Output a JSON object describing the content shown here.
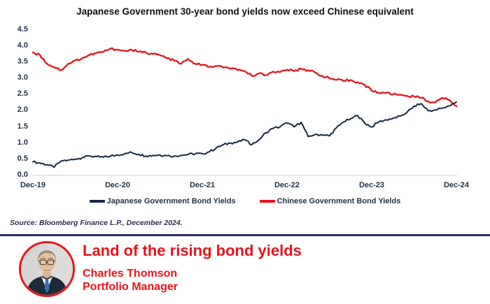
{
  "colors": {
    "red": "#e8141d",
    "navy": "#16293f",
    "divider": "#2c3065",
    "source_text": "#372a52",
    "axis_text": "#1f3044",
    "legend_text": "#253243",
    "grid": "#cccccc"
  },
  "chart_data": {
    "type": "line",
    "title": "Japanese Government 30-year bond yields now exceed Chinese equivalent",
    "xlabel": "",
    "ylabel": "",
    "ylim": [
      0,
      4.5
    ],
    "grid": "baseline-only",
    "legend_position": "bottom",
    "x_unit": "monthly observations, Dec-2019 to Dec-2024",
    "x_tick_labels": [
      "Dec-19",
      "Dec-20",
      "Dec-21",
      "Dec-22",
      "Dec-23",
      "Dec-24"
    ],
    "x_tick_months": [
      0,
      12,
      24,
      36,
      48,
      60
    ],
    "y_ticks": [
      0,
      0.5,
      1,
      1.5,
      2,
      2.5,
      3,
      3.5,
      4,
      4.5
    ],
    "y_tick_labels": [
      "0.0",
      "0.5",
      "1.0",
      "1.5",
      "2.0",
      "2.5",
      "3.0",
      "3.5",
      "4.0",
      "4.5"
    ],
    "series": [
      {
        "name": "Japanese Government Bond Yields",
        "color": "#16293f",
        "values": [
          0.42,
          0.38,
          0.33,
          0.25,
          0.45,
          0.47,
          0.5,
          0.55,
          0.6,
          0.58,
          0.56,
          0.6,
          0.63,
          0.67,
          0.71,
          0.65,
          0.6,
          0.62,
          0.63,
          0.61,
          0.6,
          0.62,
          0.65,
          0.67,
          0.67,
          0.73,
          0.85,
          0.95,
          1.0,
          1.03,
          1.1,
          0.95,
          1.1,
          1.32,
          1.45,
          1.5,
          1.62,
          1.5,
          1.64,
          1.2,
          1.27,
          1.25,
          1.22,
          1.47,
          1.65,
          1.75,
          1.85,
          1.62,
          1.5,
          1.65,
          1.72,
          1.76,
          1.83,
          1.95,
          2.14,
          2.22,
          2.0,
          2.02,
          2.08,
          2.15,
          2.27
        ]
      },
      {
        "name": "Chinese Government Bond Yields",
        "color": "#e8141d",
        "values": [
          3.8,
          3.72,
          3.45,
          3.35,
          3.25,
          3.45,
          3.55,
          3.62,
          3.72,
          3.78,
          3.82,
          3.92,
          3.88,
          3.85,
          3.88,
          3.82,
          3.8,
          3.75,
          3.72,
          3.62,
          3.55,
          3.45,
          3.6,
          3.45,
          3.42,
          3.35,
          3.38,
          3.33,
          3.3,
          3.25,
          3.22,
          3.08,
          3.15,
          3.1,
          3.21,
          3.19,
          3.27,
          3.22,
          3.3,
          3.25,
          3.18,
          3.08,
          3.0,
          2.95,
          2.92,
          2.95,
          2.88,
          2.8,
          2.62,
          2.55,
          2.55,
          2.5,
          2.5,
          2.46,
          2.44,
          2.4,
          2.29,
          2.25,
          2.4,
          2.33,
          2.14
        ]
      }
    ]
  },
  "source": {
    "text": "Source: Bloomberg Finance L.P., December 2024."
  },
  "banner": {
    "headline": "Land of the rising bond yields",
    "name": "Charles Thomson",
    "role": "Portfolio Manager"
  }
}
